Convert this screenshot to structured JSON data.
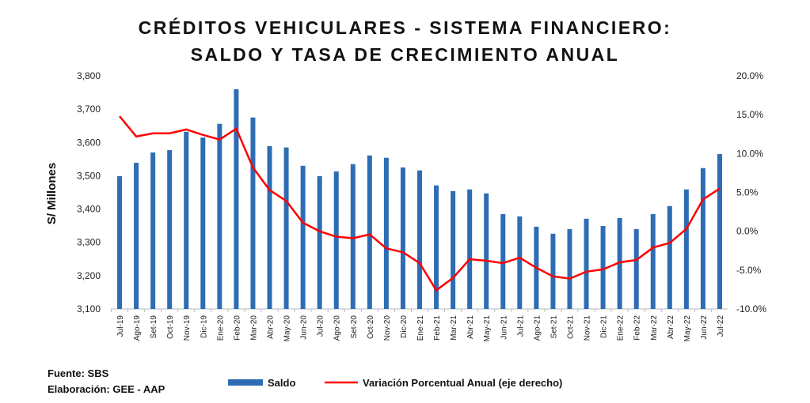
{
  "chart_data": {
    "type": "bar+line",
    "title": [
      "CRÉDITOS VEHICULARES - SISTEMA FINANCIERO:",
      "SALDO Y TASA DE CRECIMIENTO ANUAL"
    ],
    "ylabel": "S/ Millones",
    "ylim": [
      3100,
      3800
    ],
    "yticks": [
      "3,100",
      "3,200",
      "3,300",
      "3,400",
      "3,500",
      "3,600",
      "3,700",
      "3,800"
    ],
    "y2lim": [
      -10,
      20
    ],
    "y2ticks": [
      "-10.0%",
      "-5.0%",
      "0.0%",
      "5.0%",
      "10.0%",
      "15.0%",
      "20.0%"
    ],
    "categories": [
      "Jul-19",
      "Ago-19",
      "Set-19",
      "Oct-19",
      "Nov-19",
      "Dic-19",
      "Ene-20",
      "Feb-20",
      "Mar-20",
      "Abr-20",
      "May-20",
      "Jun-20",
      "Jul-20",
      "Ago-20",
      "Set-20",
      "Oct-20",
      "Nov-20",
      "Dic-20",
      "Ene-21",
      "Feb-21",
      "Mar-21",
      "Abr-21",
      "May-21",
      "Jun-21",
      "Jul-21",
      "Ago-21",
      "Set-21",
      "Oct-21",
      "Nov-21",
      "Dic-21",
      "Ene-22",
      "Feb-22",
      "Mar-22",
      "Abr-22",
      "May-22",
      "Jun-22",
      "Jul-22"
    ],
    "series": [
      {
        "name": "Saldo",
        "type": "bar",
        "axis": "left",
        "color": "#2E6DB4",
        "values": [
          3499,
          3539,
          3570,
          3577,
          3632,
          3615,
          3656,
          3760,
          3675,
          3589,
          3585,
          3530,
          3499,
          3513,
          3535,
          3561,
          3554,
          3525,
          3516,
          3471,
          3454,
          3459,
          3447,
          3385,
          3378,
          3347,
          3326,
          3340,
          3371,
          3349,
          3373,
          3340,
          3385,
          3409,
          3459,
          3523,
          3565
        ]
      },
      {
        "name": "Variación Porcentual Anual (eje derecho)",
        "type": "line",
        "axis": "right",
        "color": "#FF0000",
        "values": [
          14.8,
          12.2,
          12.6,
          12.6,
          13.1,
          12.4,
          11.8,
          13.2,
          8.2,
          5.3,
          3.9,
          1.1,
          0.0,
          -0.7,
          -0.9,
          -0.4,
          -2.2,
          -2.7,
          -4.1,
          -7.6,
          -6.0,
          -3.6,
          -3.8,
          -4.1,
          -3.4,
          -4.7,
          -5.8,
          -6.1,
          -5.2,
          -4.9,
          -4.0,
          -3.7,
          -2.1,
          -1.5,
          0.3,
          4.1,
          5.5
        ]
      }
    ],
    "legend_position": "bottom",
    "grid": false
  },
  "footer": {
    "source": "Fuente: SBS",
    "author": "Elaboración: GEE - AAP"
  }
}
